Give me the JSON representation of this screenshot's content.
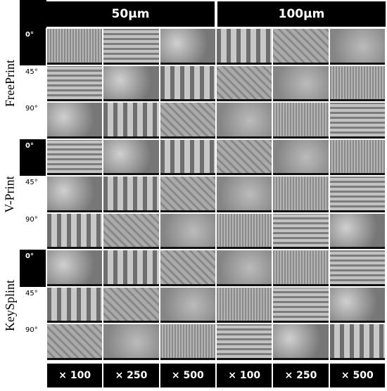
{
  "header": {
    "columns": [
      "50μm",
      "100μm"
    ]
  },
  "groups": [
    {
      "name": "FreePrint",
      "angles": [
        "0°",
        "45°",
        "90°"
      ]
    },
    {
      "name": "V-Print",
      "angles": [
        "0°",
        "45°",
        "90°"
      ]
    },
    {
      "name": "KeySplint",
      "angles": [
        "0°",
        "45°",
        "90°"
      ]
    }
  ],
  "footer": {
    "magnifications": [
      "× 100",
      "× 250",
      "× 500",
      "× 100",
      "× 250",
      "× 500"
    ]
  }
}
